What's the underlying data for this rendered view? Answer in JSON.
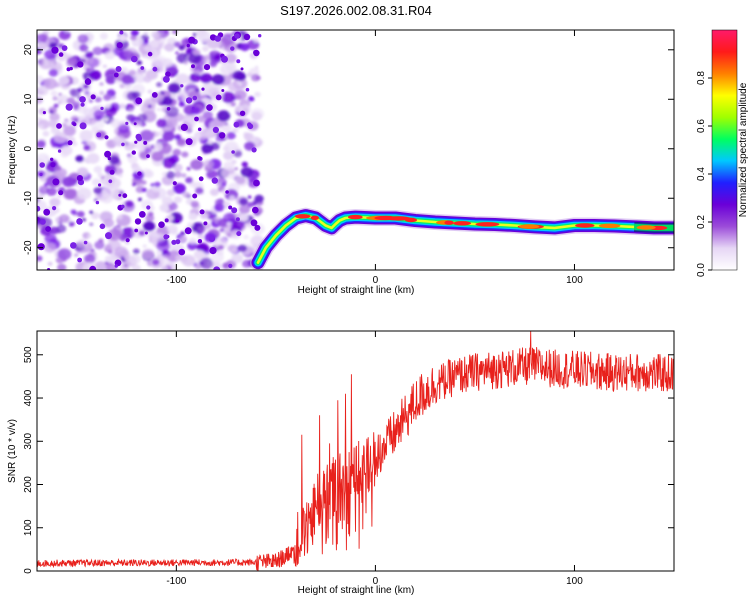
{
  "page": {
    "title": "S197.2026.002.08.31.R04"
  },
  "chart_data": [
    {
      "type": "heatmap",
      "title": "S197.2026.002.08.31.R04",
      "xlabel": "Height of straight line (km)",
      "ylabel": "Frequency (Hz)",
      "xlim": [
        -170,
        150
      ],
      "ylim": [
        -24.5,
        24
      ],
      "xticks": [
        -100,
        0,
        100
      ],
      "yticks": [
        20,
        10,
        0,
        -10,
        -20
      ],
      "xtick_labels": [
        "-100",
        "0",
        "100"
      ],
      "ytick_labels": [
        "20",
        "10",
        "0",
        "-10",
        "-20"
      ],
      "noise_region_x": [
        -170,
        -58
      ],
      "ridge": {
        "x": [
          -59,
          -55,
          -50,
          -45,
          -40,
          -35,
          -30,
          -25,
          -22,
          -20,
          -18,
          -15,
          -10,
          0,
          10,
          20,
          30,
          40,
          50,
          60,
          70,
          80,
          90,
          100,
          110,
          120,
          130,
          140,
          150
        ],
        "freq": [
          -23,
          -20,
          -17.5,
          -15.5,
          -14,
          -13.5,
          -14,
          -15.5,
          -16,
          -15.2,
          -14.5,
          -14,
          -13.8,
          -14,
          -14,
          -14.5,
          -14.8,
          -15,
          -15.2,
          -15.3,
          -15.5,
          -15.8,
          -16,
          -15.5,
          -15.5,
          -15.6,
          -15.8,
          -16,
          -16
        ]
      },
      "colorbar": {
        "label": "Normalized spectral amplitude",
        "ticks": [
          0.0,
          0.2,
          0.4,
          0.6,
          0.8
        ],
        "tick_labels": [
          "0.0",
          "0.2",
          "0.4",
          "0.6",
          "0.8"
        ],
        "range": [
          0,
          1
        ],
        "colors": [
          "#ffffff",
          "#e6d6f5",
          "#9b4bd9",
          "#6a00d8",
          "#2020ff",
          "#00c8ff",
          "#00ff60",
          "#a0ff00",
          "#ffff00",
          "#ff8000",
          "#ff1a1a",
          "#ff1a6a"
        ]
      }
    },
    {
      "type": "line",
      "xlabel": "Height of straight line (km)",
      "ylabel": "SNR (10 * v/v)",
      "xlim": [
        -170,
        150
      ],
      "ylim": [
        0,
        555
      ],
      "xticks": [
        -100,
        0,
        100
      ],
      "yticks": [
        0,
        100,
        200,
        300,
        400,
        500
      ],
      "xtick_labels": [
        "-100",
        "0",
        "100"
      ],
      "ytick_labels": [
        "0",
        "100",
        "200",
        "300",
        "400",
        "500"
      ],
      "series": [
        {
          "name": "SNR",
          "color": "#e8211c",
          "trend_x": [
            -170,
            -60,
            -50,
            -45,
            -40,
            -35,
            -30,
            -25,
            -20,
            -15,
            -10,
            -5,
            0,
            5,
            10,
            15,
            20,
            25,
            30,
            40,
            50,
            60,
            70,
            80,
            90,
            100,
            110,
            120,
            130,
            140,
            150
          ],
          "trend_y": [
            18,
            20,
            22,
            35,
            60,
            100,
            150,
            180,
            200,
            215,
            225,
            245,
            265,
            290,
            320,
            355,
            390,
            415,
            430,
            450,
            460,
            465,
            470,
            475,
            468,
            465,
            462,
            458,
            460,
            458,
            455
          ],
          "spikes": [
            {
              "x": -37,
              "y": 315
            },
            {
              "x": -28,
              "y": 360
            },
            {
              "x": -23,
              "y": 295
            },
            {
              "x": -19,
              "y": 395
            },
            {
              "x": -15,
              "y": 410
            },
            {
              "x": -12,
              "y": 455
            },
            {
              "x": 62,
              "y": 500
            },
            {
              "x": 78,
              "y": 555
            }
          ]
        }
      ]
    }
  ]
}
